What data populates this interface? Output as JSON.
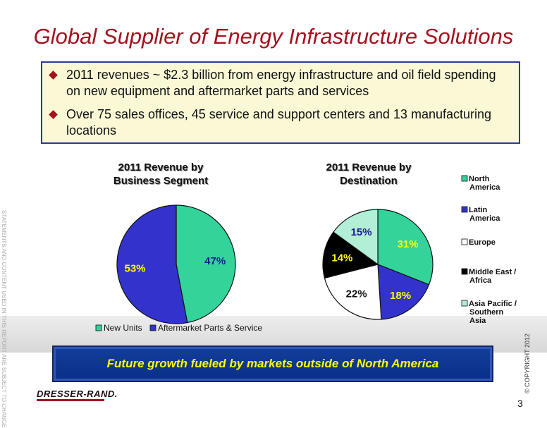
{
  "title": "Global Supplier of Energy Infrastructure Solutions",
  "bullets": [
    "2011 revenues ~ $2.3 billion from energy infrastructure and oil field spending on new equipment and aftermarket parts and services",
    "Over 75 sales offices, 45 service and support centers and 13 manufacturing locations"
  ],
  "side_note": "STATEMENTS AND CONTENT USED IN THIS REPORT ARE SUBJECT TO CHANGE",
  "chart_data": [
    {
      "type": "pie",
      "title_line1": "2011 Revenue by",
      "title_line2": "Business Segment",
      "categories": [
        "New Units",
        "Aftermarket Parts & Service"
      ],
      "values": [
        47,
        53
      ],
      "labels": [
        "47%",
        "53%"
      ],
      "colors": [
        "#33d39a",
        "#3333cc"
      ],
      "label_colors": [
        "#1a1a8c",
        "#ffff00"
      ],
      "legend_placement": "bottom"
    },
    {
      "type": "pie",
      "title_line1": "2011 Revenue by",
      "title_line2": "Destination",
      "categories": [
        "North America",
        "Latin America",
        "Europe",
        "Middle East / Africa",
        "Asia Pacific / Southern Asia"
      ],
      "legend_lines": [
        [
          "North",
          "America"
        ],
        [
          "Latin",
          "America"
        ],
        [
          "Europe"
        ],
        [
          "Middle East /",
          "Africa"
        ],
        [
          "Asia Pacific /",
          "Southern",
          "Asia"
        ]
      ],
      "values": [
        31,
        18,
        22,
        14,
        15
      ],
      "labels": [
        "31%",
        "18%",
        "22%",
        "14%",
        "15%"
      ],
      "colors": [
        "#33d39a",
        "#3333cc",
        "#ffffff",
        "#000000",
        "#b3eed6"
      ],
      "label_colors": [
        "#ffff00",
        "#ffff00",
        "#111111",
        "#ffff00",
        "#1a1a8c"
      ],
      "legend_placement": "right"
    }
  ],
  "banner": "Future growth fueled by markets outside of North America",
  "logo": "DRESSER-RAND.",
  "copyright": "© COPYRIGHT 2012",
  "page_number": "3"
}
